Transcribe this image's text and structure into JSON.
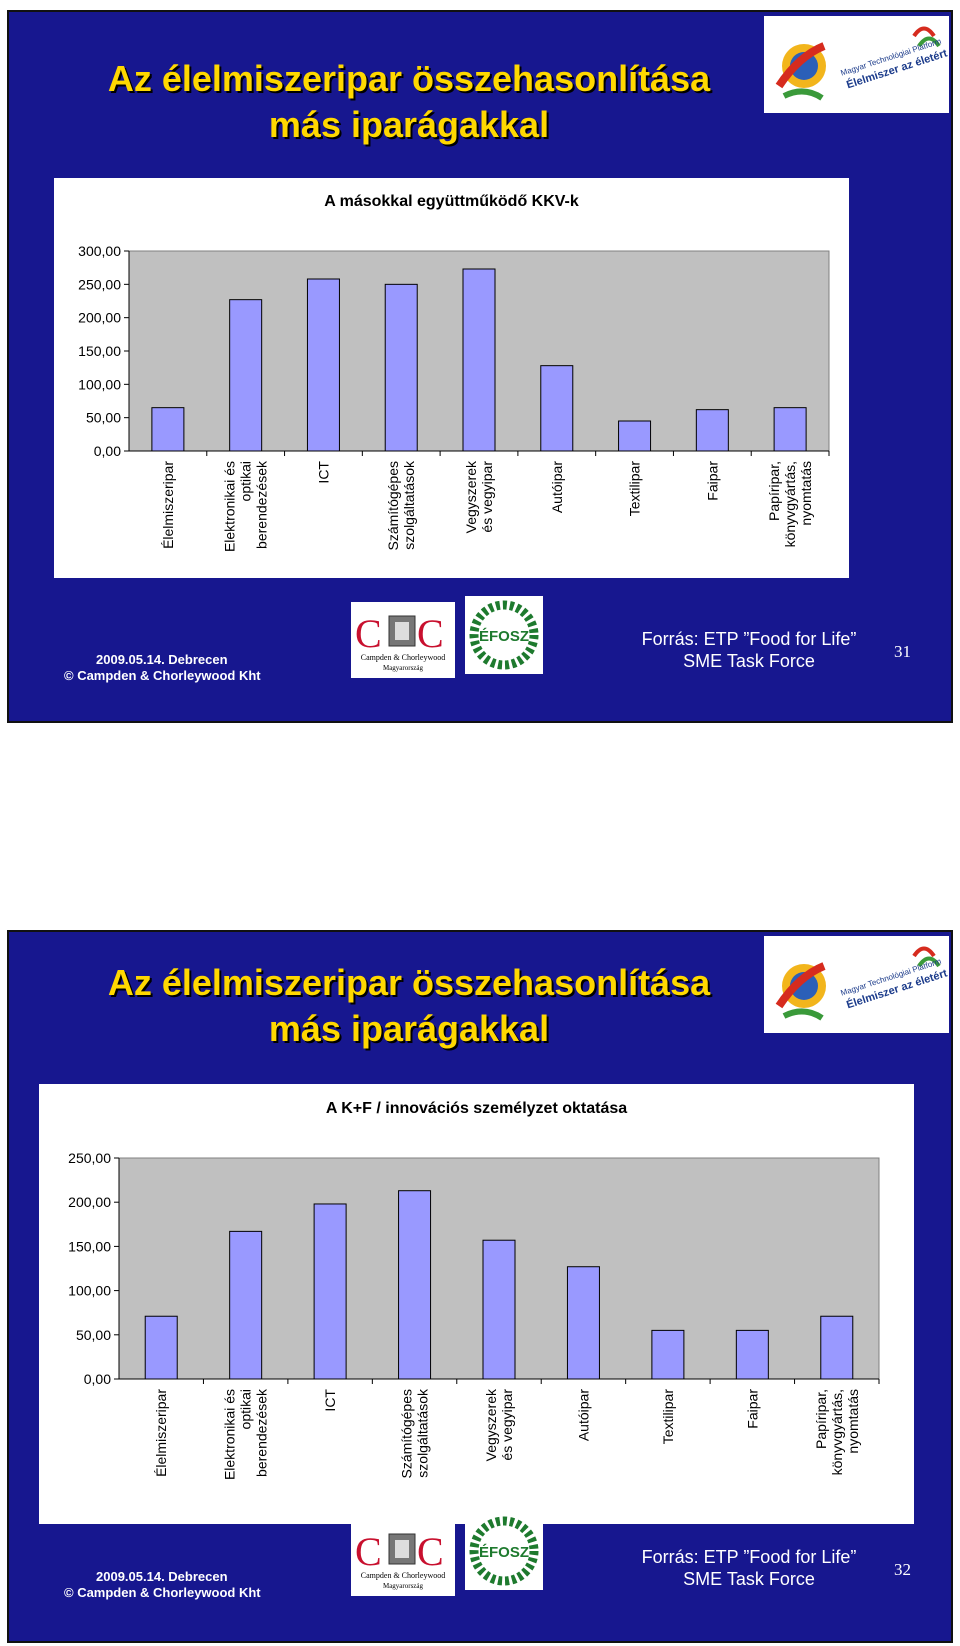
{
  "slides": [
    {
      "title_line1": "Az élelmiszeripar összehasonlítása",
      "title_line2": "más iparágakkal",
      "logo_text_1": "Magyar Technológiai Platform",
      "logo_text_2": "Élelmiszer az életért",
      "footer_date": "2009.05.14. Debrecen",
      "footer_org": "© Campden & Chorleywood Kht",
      "ccfra_name": "Campden & Chorleywood",
      "ccfra_country": "Magyarország",
      "efosz_label": "ÉFOSZ",
      "source_line1": "Forrás: ETP ”Food for Life”",
      "source_line2": "SME Task Force",
      "page_number": "31"
    },
    {
      "title_line1": "Az élelmiszeripar összehasonlítása",
      "title_line2": "más iparágakkal",
      "logo_text_1": "Magyar Technológiai Platform",
      "logo_text_2": "Élelmiszer az életért",
      "footer_date": "2009.05.14. Debrecen",
      "footer_org": "© Campden & Chorleywood Kht",
      "ccfra_name": "Campden & Chorleywood",
      "ccfra_country": "Magyarország",
      "efosz_label": "ÉFOSZ",
      "source_line1": "Forrás: ETP ”Food for Life”",
      "source_line2": "SME Task Force",
      "page_number": "32"
    }
  ],
  "colors": {
    "slide_background": "#17178f",
    "title": "#ffd800",
    "plot_area": "#c0c0c0",
    "bar_fill": "#9999ff",
    "bar_stroke": "#000000"
  },
  "chart_data": [
    {
      "type": "bar",
      "title": "A másokkal együttműködő KKV-k",
      "categories": [
        [
          "Élelmiszeripar"
        ],
        [
          "Elektronikai és",
          "optikai",
          "berendezések"
        ],
        [
          "ICT"
        ],
        [
          "Számítógépes",
          "szolgáltatások"
        ],
        [
          "Vegyszerek",
          "és vegyipar"
        ],
        [
          "Autóipar"
        ],
        [
          "Textilipar"
        ],
        [
          "Faipar"
        ],
        [
          "Papíripar,",
          "könyvgyártás,",
          "nyomtatás"
        ]
      ],
      "values": [
        65,
        227,
        258,
        250,
        273,
        128,
        45,
        62,
        65
      ],
      "ylim": [
        0,
        300
      ],
      "yticks": [
        "0,00",
        "50,00",
        "100,00",
        "150,00",
        "200,00",
        "250,00",
        "300,00"
      ],
      "grid": false,
      "legend": "none"
    },
    {
      "type": "bar",
      "title": "A K+F / innovációs személyzet oktatása",
      "categories": [
        [
          "Élelmiszeripar"
        ],
        [
          "Elektronikai és",
          "optikai",
          "berendezések"
        ],
        [
          "ICT"
        ],
        [
          "Számítógépes",
          "szolgáltatások"
        ],
        [
          "Vegyszerek",
          "és vegyipar"
        ],
        [
          "Autóipar"
        ],
        [
          "Textilipar"
        ],
        [
          "Faipar"
        ],
        [
          "Papíripar,",
          "könyvgyártás,",
          "nyomtatás"
        ]
      ],
      "values": [
        71,
        167,
        198,
        213,
        157,
        127,
        55,
        55,
        71
      ],
      "ylim": [
        0,
        250
      ],
      "yticks": [
        "0,00",
        "50,00",
        "100,00",
        "150,00",
        "200,00",
        "250,00"
      ],
      "grid": false,
      "legend": "none"
    }
  ]
}
